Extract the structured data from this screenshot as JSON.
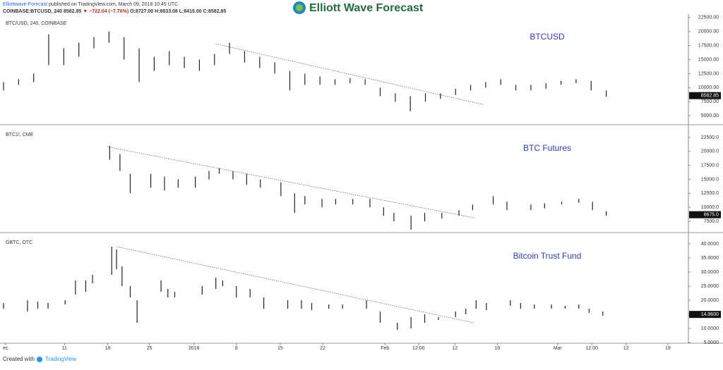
{
  "header": {
    "publisher": "Elliottwave-Forecast",
    "published": "published on TradingView.com, March 09, 2018 10:45 UTC",
    "symbol": "COINBASE:BTCUSD, 240",
    "last": "8582.85",
    "change": "▼ −722.04 (−7.76%)",
    "ohlc": "O:8727.00 H:8833.08 L:8415.00 C:8582.85",
    "logo": "Elliott Wave Forecast"
  },
  "footer": {
    "created": "Created with",
    "brand": "TradingView"
  },
  "chart_data": [
    {
      "type": "range",
      "title": "BTC/USD, 240, COINBASE",
      "annotation": "BTCUSD",
      "color": "#222222",
      "x": [
        0,
        2.2,
        4.4,
        6.6,
        8.8,
        11,
        13.2,
        15.4,
        17.6,
        19.8,
        22,
        24.2,
        26.4,
        28.6,
        30.8,
        33,
        35.2,
        37.4,
        39.6,
        41.8,
        44,
        46.2,
        48.4,
        50.6,
        52.8,
        55,
        57.2,
        59.4,
        61.6,
        63.8,
        66,
        68.2,
        70.4,
        72.6,
        74.8,
        77,
        79.2,
        81.4,
        83.6,
        85.8,
        88
      ],
      "low": [
        9500,
        10500,
        11000,
        14000,
        14000,
        15500,
        17000,
        18000,
        15000,
        11000,
        13000,
        14000,
        13500,
        13000,
        14000,
        16000,
        14500,
        13500,
        12500,
        9500,
        10500,
        10500,
        10500,
        10800,
        10500,
        8500,
        7500,
        5800,
        7500,
        8000,
        8700,
        9500,
        10000,
        10500,
        9500,
        9500,
        9800,
        10500,
        10800,
        9500,
        8400
      ],
      "high": [
        11000,
        11500,
        12500,
        19500,
        17000,
        18000,
        19000,
        20000,
        19000,
        17000,
        15500,
        16500,
        15500,
        15000,
        16000,
        18000,
        16500,
        15500,
        14500,
        13000,
        12500,
        12000,
        11500,
        11700,
        11500,
        10000,
        9000,
        8500,
        9000,
        9000,
        9800,
        10500,
        11000,
        11500,
        10500,
        10500,
        10800,
        11200,
        11500,
        11200,
        9500
      ],
      "xlim": [
        0,
        100
      ],
      "ylim": [
        3400,
        23100
      ],
      "yticks": [
        {
          "value": 5000,
          "label": "5000.00"
        },
        {
          "value": 7500,
          "label": "7500.00"
        },
        {
          "value": 10000,
          "label": "10000.00"
        },
        {
          "value": 12500,
          "label": "12500.00"
        },
        {
          "value": 15000,
          "label": "15000.00"
        },
        {
          "value": 17500,
          "label": "17500.00"
        },
        {
          "value": 20000,
          "label": "20000.00"
        },
        {
          "value": 22500,
          "label": "22500.00"
        }
      ],
      "last_price": 8582.85,
      "trendline": {
        "x": [
          31,
          70
        ],
        "y": [
          17800,
          7000
        ]
      }
    },
    {
      "type": "range",
      "title": "BTC1!, CME",
      "annotation": "BTC Futures",
      "color": "#222222",
      "x": [
        15.5,
        17,
        18.5,
        21.5,
        23.5,
        25.5,
        28,
        30,
        31.5,
        33.5,
        35.5,
        37.5,
        40.5,
        42.5,
        44,
        46.5,
        48.5,
        51,
        53.5,
        55.5,
        57,
        59.5,
        61.5,
        64,
        66.5,
        68.5,
        71.5,
        73.5,
        77,
        79,
        81.5,
        84,
        86,
        88
      ],
      "low": [
        18500,
        16500,
        12500,
        13500,
        13000,
        13500,
        13500,
        15000,
        16000,
        15000,
        14000,
        13500,
        12000,
        9000,
        10500,
        10000,
        10500,
        10500,
        10000,
        8500,
        7500,
        6000,
        7500,
        8000,
        8500,
        9500,
        10500,
        9500,
        9500,
        9800,
        10500,
        10800,
        9500,
        8500
      ],
      "high": [
        21000,
        19500,
        16000,
        16000,
        15500,
        15000,
        15500,
        16500,
        17000,
        16500,
        16000,
        15000,
        14500,
        12500,
        12000,
        11500,
        11500,
        11500,
        11500,
        10000,
        9000,
        8500,
        9000,
        9000,
        9500,
        10500,
        12000,
        11000,
        10500,
        10700,
        11000,
        11500,
        11000,
        9300
      ],
      "xlim": [
        0,
        100
      ],
      "ylim": [
        5480,
        24640
      ],
      "yticks": [
        {
          "value": 7500,
          "label": "7500.0"
        },
        {
          "value": 10000,
          "label": "10000.0"
        },
        {
          "value": 12500,
          "label": "12500.0"
        },
        {
          "value": 15000,
          "label": "15000.0"
        },
        {
          "value": 17500,
          "label": "17500.0"
        },
        {
          "value": 20000,
          "label": "20000.0"
        },
        {
          "value": 22500,
          "label": "22500.0"
        }
      ],
      "last_price": {
        "value": 8675,
        "label": "8675.0"
      },
      "trendline": {
        "x": [
          15.2,
          68.8
        ],
        "y": [
          20800,
          8100
        ]
      }
    },
    {
      "type": "range",
      "title": "GBTC, OTC",
      "annotation": "Bitcoin Trust Fund",
      "color": "#222222",
      "x": [
        0,
        3.5,
        5,
        6.5,
        9,
        10.5,
        12,
        13,
        15.8,
        16.5,
        17.3,
        18.5,
        19.5,
        23,
        24,
        25,
        29,
        31,
        32,
        34,
        36,
        38,
        41.5,
        43.5,
        45,
        47.5,
        49.5,
        53,
        55,
        57.5,
        59.5,
        61.5,
        63.5,
        66,
        67.5,
        69,
        70.5,
        74,
        75.5,
        77.5,
        80,
        82,
        84,
        85.5,
        87.5
      ],
      "low": [
        17,
        16,
        17,
        17,
        18.5,
        22,
        23,
        26,
        29,
        31,
        25,
        21,
        12,
        23,
        21,
        21,
        22,
        24,
        25,
        21,
        21,
        17,
        17,
        17,
        16.5,
        17,
        17,
        17,
        12,
        9.5,
        10,
        12,
        13,
        14,
        15,
        17,
        16.5,
        18,
        17,
        17,
        17,
        17,
        17,
        15.5,
        14.5
      ],
      "high": [
        19,
        20,
        19.5,
        19,
        20,
        27,
        27,
        29,
        39,
        38,
        32,
        25,
        20,
        27,
        24,
        23,
        25,
        28,
        27,
        25,
        24,
        21,
        20,
        20,
        19,
        18.5,
        18.5,
        20,
        16,
        12,
        14,
        15,
        14,
        16,
        17,
        20,
        19,
        20,
        19,
        18.5,
        18.5,
        18,
        18.5,
        17,
        16
      ],
      "xlim": [
        0,
        100
      ],
      "ylim": [
        4.75,
        43.75
      ],
      "yticks": [
        {
          "value": 5,
          "label": "5.0000"
        },
        {
          "value": 10,
          "label": "10.0000"
        },
        {
          "value": 15,
          "label": "15.0000"
        },
        {
          "value": 20,
          "label": "20.0000"
        },
        {
          "value": 25,
          "label": "25.0000"
        },
        {
          "value": 30,
          "label": "30.0000"
        },
        {
          "value": 35,
          "label": "35.0000"
        },
        {
          "value": 40,
          "label": "40.0000"
        }
      ],
      "last_price": {
        "value": 14.96,
        "label": "14.9600"
      },
      "trendline": {
        "x": [
          16.5,
          68.7
        ],
        "y": [
          39,
          12
        ]
      },
      "xticks": [
        {
          "value": 0.3,
          "label": "ec"
        },
        {
          "value": 8.9,
          "label": "11"
        },
        {
          "value": 15.2,
          "label": "18"
        },
        {
          "value": 21.3,
          "label": "25"
        },
        {
          "value": 27.8,
          "label": "2018"
        },
        {
          "value": 34,
          "label": "8"
        },
        {
          "value": 40.4,
          "label": "15"
        },
        {
          "value": 46.6,
          "label": "22"
        },
        {
          "value": 55.7,
          "label": "Feb"
        },
        {
          "value": 60.6,
          "label": "12:00"
        },
        {
          "value": 65.9,
          "label": "12"
        },
        {
          "value": 72.1,
          "label": "19"
        },
        {
          "value": 80.9,
          "label": "Mar"
        },
        {
          "value": 85.9,
          "label": "12:00"
        },
        {
          "value": 90.9,
          "label": "12"
        },
        {
          "value": 97,
          "label": "19"
        }
      ]
    }
  ]
}
